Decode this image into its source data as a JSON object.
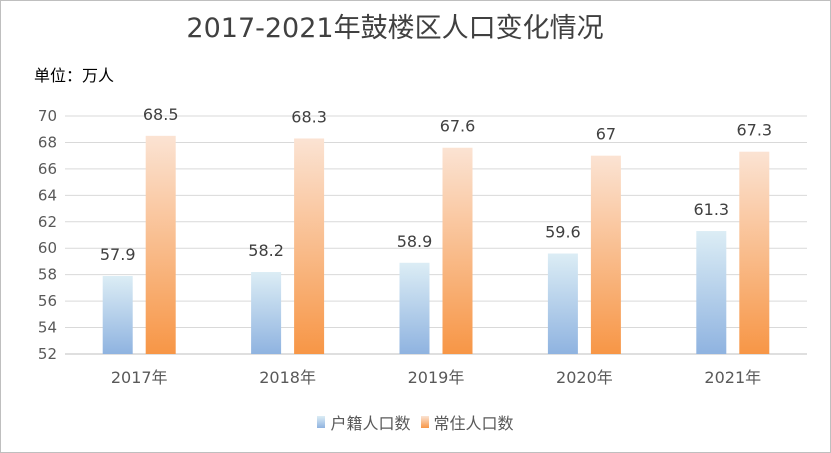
{
  "chart_data": {
    "type": "bar",
    "title": "2017-2021年鼓楼区人口变化情况",
    "unit_label": "单位：万人",
    "categories": [
      "2017年",
      "2018年",
      "2019年",
      "2020年",
      "2021年"
    ],
    "series": [
      {
        "name": "户籍人口数",
        "values": [
          57.9,
          58.2,
          58.9,
          59.6,
          61.3
        ],
        "color_top": "#dcedf5",
        "color_bottom": "#8fb3e0"
      },
      {
        "name": "常住人口数",
        "values": [
          68.5,
          68.3,
          67.6,
          67,
          67.3
        ],
        "color_top": "#fbe3d3",
        "color_bottom": "#f79646"
      }
    ],
    "ylim": [
      52,
      70
    ],
    "yticks": [
      52,
      54,
      56,
      58,
      60,
      62,
      64,
      66,
      68,
      70
    ],
    "grid": true,
    "legend_position": "bottom"
  }
}
